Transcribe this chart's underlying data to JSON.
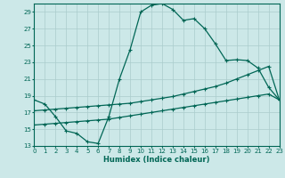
{
  "xlabel": "Humidex (Indice chaleur)",
  "background_color": "#cce8e8",
  "grid_color": "#aacccc",
  "line_color": "#006655",
  "x_ticks": [
    0,
    1,
    2,
    3,
    4,
    5,
    6,
    7,
    8,
    9,
    10,
    11,
    12,
    13,
    14,
    15,
    16,
    17,
    18,
    19,
    20,
    21,
    22,
    23
  ],
  "y_ticks": [
    13,
    15,
    17,
    19,
    21,
    23,
    25,
    27,
    29
  ],
  "xlim": [
    0,
    23
  ],
  "ylim": [
    13,
    30
  ],
  "curve1_x": [
    0,
    1,
    2,
    3,
    4,
    5,
    6,
    7,
    8,
    9,
    10,
    11,
    12,
    13,
    14,
    15,
    16,
    17,
    18,
    19,
    20,
    21,
    22,
    23
  ],
  "curve1_y": [
    18.5,
    18.0,
    16.5,
    14.8,
    14.5,
    13.5,
    13.3,
    16.5,
    21.0,
    24.5,
    29.0,
    29.8,
    30.0,
    29.3,
    28.0,
    28.2,
    27.0,
    25.2,
    23.2,
    23.3,
    23.2,
    22.3,
    20.0,
    18.5
  ],
  "curve2_x": [
    0,
    1,
    2,
    3,
    4,
    5,
    6,
    7,
    8,
    9,
    10,
    11,
    12,
    13,
    14,
    15,
    16,
    17,
    18,
    19,
    20,
    21,
    22,
    23
  ],
  "curve2_y": [
    17.2,
    17.3,
    17.4,
    17.5,
    17.6,
    17.7,
    17.8,
    17.9,
    18.0,
    18.1,
    18.3,
    18.5,
    18.7,
    18.9,
    19.2,
    19.5,
    19.8,
    20.1,
    20.5,
    21.0,
    21.5,
    22.0,
    22.5,
    18.5
  ],
  "curve3_x": [
    0,
    1,
    2,
    3,
    4,
    5,
    6,
    7,
    8,
    9,
    10,
    11,
    12,
    13,
    14,
    15,
    16,
    17,
    18,
    19,
    20,
    21,
    22,
    23
  ],
  "curve3_y": [
    15.5,
    15.6,
    15.7,
    15.8,
    15.9,
    16.0,
    16.1,
    16.2,
    16.4,
    16.6,
    16.8,
    17.0,
    17.2,
    17.4,
    17.6,
    17.8,
    18.0,
    18.2,
    18.4,
    18.6,
    18.8,
    19.0,
    19.2,
    18.5
  ]
}
